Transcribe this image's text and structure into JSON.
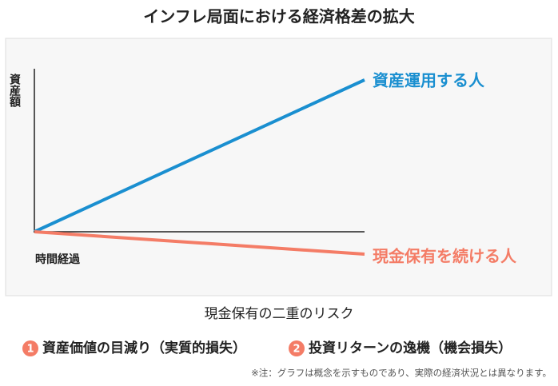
{
  "header": {
    "title": "インフレ局面における経済格差の拡大"
  },
  "diagram": {
    "y_axis_label": "資産額",
    "x_axis_label": "時間経過",
    "lines": [
      {
        "label": "資産運用する人",
        "color": "#1a8fd0"
      },
      {
        "label": "現金保有を続ける人",
        "color": "#f47c66"
      }
    ]
  },
  "risks": {
    "heading": "現金保有の二重のリスク",
    "items": [
      {
        "number": "1",
        "text": "資産価値の目減り（実質的損失）"
      },
      {
        "number": "2",
        "text": "投資リターンの逸機（機会損失）"
      }
    ]
  },
  "note": "※注：グラフは概念を示すものであり、実際の経済状況とは異なります。"
}
